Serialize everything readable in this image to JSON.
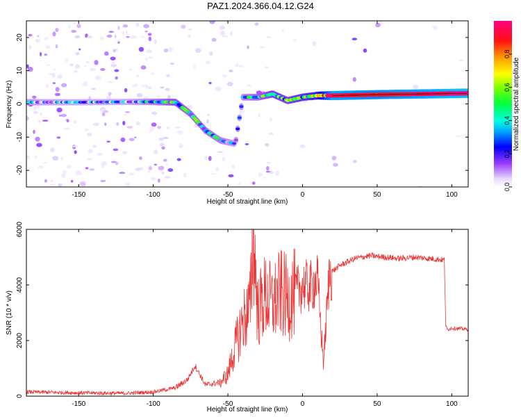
{
  "figure_title": "PAZ1.2024.366.04.12.G24",
  "chart_data": [
    {
      "type": "heatmap",
      "xlabel": "Height of straight line (km)",
      "ylabel": "Frequency (Hz)",
      "xlim": [
        -185,
        111
      ],
      "ylim": [
        -25,
        25
      ],
      "xticks": [
        -150,
        -100,
        -50,
        0,
        50,
        100
      ],
      "yticks": [
        -20,
        -10,
        0,
        10,
        20
      ],
      "colorbar": {
        "label": "Normalized spectral amplitude",
        "range": [
          0.0,
          1.0
        ],
        "ticks": [
          0.0,
          0.2,
          0.4,
          0.6,
          0.8
        ],
        "colormap": "rainbow (white-lavender-purple-blue-cyan-green-yellow-orange-red-magenta)"
      },
      "ridge": {
        "description": "main spectral ridge frequency vs height",
        "x": [
          -180,
          -150,
          -120,
          -100,
          -85,
          -75,
          -65,
          -55,
          -45,
          -40,
          -30,
          -20,
          -10,
          0,
          10,
          20,
          50,
          80,
          110
        ],
        "y": [
          0.5,
          0.5,
          0.6,
          0.6,
          0.5,
          -3,
          -8,
          -11,
          -12,
          2,
          2,
          3,
          1,
          2,
          2.5,
          2.5,
          2.8,
          3,
          3.2
        ],
        "amplitude": [
          0.25,
          0.2,
          0.2,
          0.3,
          0.4,
          0.35,
          0.35,
          0.3,
          0.25,
          0.3,
          0.35,
          0.45,
          0.45,
          0.5,
          0.6,
          0.95,
          0.9,
          0.95,
          1.0
        ]
      }
    },
    {
      "type": "line",
      "xlabel": "Height of straight line (km)",
      "ylabel": "SNR (10 * v/v)",
      "xlim": [
        -185,
        111
      ],
      "ylim": [
        0,
        6000
      ],
      "xticks": [
        -150,
        -100,
        -50,
        0,
        50,
        100
      ],
      "yticks": [
        0,
        2000,
        4000,
        6000
      ],
      "color": "#ee3333",
      "x": [
        -185,
        -150,
        -120,
        -100,
        -85,
        -77,
        -72,
        -65,
        -55,
        -50,
        -45,
        -40,
        -35,
        -33,
        -30,
        -25,
        -20,
        -15,
        -10,
        -5,
        0,
        5,
        10,
        14,
        18,
        25,
        35,
        45,
        55,
        65,
        75,
        85,
        95,
        96,
        97,
        100,
        111
      ],
      "y": [
        150,
        120,
        100,
        150,
        300,
        600,
        1100,
        400,
        500,
        800,
        1800,
        2700,
        3200,
        6000,
        3000,
        3600,
        3300,
        3700,
        3500,
        3700,
        4000,
        3900,
        4200,
        1200,
        4400,
        4700,
        4950,
        5050,
        5000,
        4950,
        5000,
        4950,
        4900,
        2500,
        2400,
        2450,
        2400
      ]
    }
  ]
}
